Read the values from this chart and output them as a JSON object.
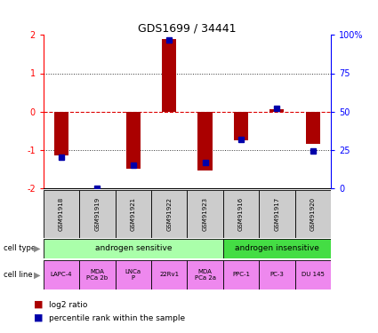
{
  "title": "GDS1699 / 34441",
  "samples": [
    "GSM91918",
    "GSM91919",
    "GSM91921",
    "GSM91922",
    "GSM91923",
    "GSM91916",
    "GSM91917",
    "GSM91920"
  ],
  "log2_ratio": [
    -1.15,
    0.0,
    -1.5,
    1.9,
    -1.55,
    -0.75,
    0.05,
    -0.85
  ],
  "percentile_rank": [
    20,
    0,
    15,
    97,
    17,
    32,
    52,
    24
  ],
  "ylim_left": [
    -2,
    2
  ],
  "ylim_right": [
    0,
    100
  ],
  "cell_type_groups": [
    {
      "label": "androgen sensitive",
      "start": 0,
      "end": 5,
      "color": "#aaffaa"
    },
    {
      "label": "androgen insensitive",
      "start": 5,
      "end": 8,
      "color": "#44dd44"
    }
  ],
  "cell_lines": [
    "LAPC-4",
    "MDA\nPCa 2b",
    "LNCa\nP",
    "22Rv1",
    "MDA\nPCa 2a",
    "PPC-1",
    "PC-3",
    "DU 145"
  ],
  "cell_line_color": "#ee88ee",
  "gsm_bg_color": "#cccccc",
  "bar_color": "#aa0000",
  "dot_color": "#0000aa",
  "zero_line_color": "#dd0000",
  "grid_line_color": "#333333",
  "yticks_left": [
    -2,
    -1,
    0,
    1,
    2
  ],
  "yticks_right": [
    0,
    25,
    50,
    75,
    100
  ],
  "ytick_right_labels": [
    "0",
    "25",
    "50",
    "75",
    "100%"
  ],
  "legend_bar_label": "log2 ratio",
  "legend_dot_label": "percentile rank within the sample"
}
